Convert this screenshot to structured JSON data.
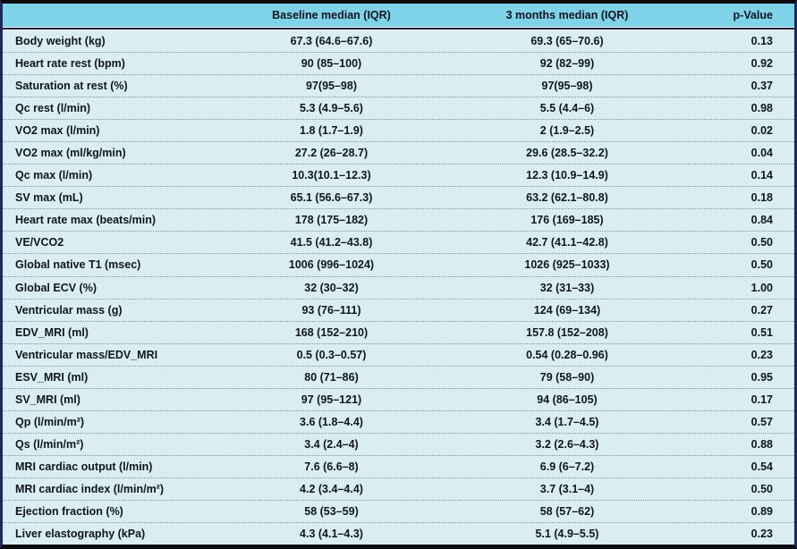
{
  "colors": {
    "header_bg": "#7fd3e8",
    "row_bg": "#d9edf3",
    "text": "#10151f",
    "border_dark": "#0b0b0f",
    "border_side": "#1e2a5e",
    "row_separator": "#7c979f"
  },
  "table": {
    "columns": {
      "parameter": "",
      "baseline": "Baseline median (IQR)",
      "three_months": "3 months median (IQR)",
      "p_value": "p-Value"
    },
    "rows": [
      {
        "label": "Body weight (kg)",
        "baseline": "67.3 (64.6–67.6)",
        "three_months": "69.3 (65–70.6)",
        "p_value": "0.13"
      },
      {
        "label": "Heart rate rest (bpm)",
        "baseline": "90 (85–100)",
        "three_months": "92 (82–99)",
        "p_value": "0.92"
      },
      {
        "label": "Saturation at rest (%)",
        "baseline": "97(95–98)",
        "three_months": "97(95–98)",
        "p_value": "0.37"
      },
      {
        "label": "Qc rest (l/min)",
        "baseline": "5.3 (4.9–5.6)",
        "three_months": "5.5 (4.4–6)",
        "p_value": "0.98"
      },
      {
        "label": "VO2 max (l/min)",
        "baseline": "1.8 (1.7–1.9)",
        "three_months": "2 (1.9–2.5)",
        "p_value": "0.02"
      },
      {
        "label": "VO2 max (ml/kg/min)",
        "baseline": "27.2 (26–28.7)",
        "three_months": "29.6 (28.5–32.2)",
        "p_value": "0.04"
      },
      {
        "label": "Qc max (l/min)",
        "baseline": "10.3(10.1–12.3)",
        "three_months": "12.3 (10.9–14.9)",
        "p_value": "0.14"
      },
      {
        "label": "SV max (mL)",
        "baseline": "65.1 (56.6–67.3)",
        "three_months": "63.2 (62.1–80.8)",
        "p_value": "0.18"
      },
      {
        "label": "Heart rate max (beats/min)",
        "baseline": "178 (175–182)",
        "three_months": "176 (169–185)",
        "p_value": "0.84"
      },
      {
        "label": "VE/VCO2",
        "baseline": "41.5 (41.2–43.8)",
        "three_months": "42.7 (41.1–42.8)",
        "p_value": "0.50"
      },
      {
        "label": "Global native T1 (msec)",
        "baseline": "1006 (996–1024)",
        "three_months": "1026 (925–1033)",
        "p_value": "0.50"
      },
      {
        "label": "Global ECV (%)",
        "baseline": "32 (30–32)",
        "three_months": "32 (31–33)",
        "p_value": "1.00"
      },
      {
        "label": "Ventricular mass (g)",
        "baseline": "93 (76–111)",
        "three_months": "124 (69–134)",
        "p_value": "0.27"
      },
      {
        "label": "EDV_MRI (ml)",
        "baseline": "168 (152–210)",
        "three_months": "157.8 (152–208)",
        "p_value": "0.51"
      },
      {
        "label": "Ventricular mass/EDV_MRI",
        "baseline": "0.5 (0.3–0.57)",
        "three_months": "0.54 (0.28–0.96)",
        "p_value": "0.23"
      },
      {
        "label": "ESV_MRI (ml)",
        "baseline": "80 (71–86)",
        "three_months": "79 (58–90)",
        "p_value": "0.95"
      },
      {
        "label": "SV_MRI (ml)",
        "baseline": "97 (95–121)",
        "three_months": "94 (86–105)",
        "p_value": "0.17"
      },
      {
        "label": "Qp (l/min/m²)",
        "baseline": "3.6 (1.8–4.4)",
        "three_months": "3.4 (1.7–4.5)",
        "p_value": "0.57"
      },
      {
        "label": "Qs (l/min/m²)",
        "baseline": "3.4 (2.4–4)",
        "three_months": "3.2 (2.6–4.3)",
        "p_value": "0.88"
      },
      {
        "label": "MRI cardiac output (l/min)",
        "baseline": "7.6 (6.6–8)",
        "three_months": "6.9 (6–7.2)",
        "p_value": "0.54"
      },
      {
        "label": "MRI cardiac index (l/min/m²)",
        "baseline": "4.2 (3.4–4.4)",
        "three_months": "3.7 (3.1–4)",
        "p_value": "0.50"
      },
      {
        "label": "Ejection fraction (%)",
        "baseline": "58 (53–59)",
        "three_months": "58 (57–62)",
        "p_value": "0.89"
      },
      {
        "label": "Liver elastography (kPa)",
        "baseline": "4.3 (4.1–4.3)",
        "three_months": "5.1 (4.9–5.5)",
        "p_value": "0.23"
      }
    ]
  }
}
